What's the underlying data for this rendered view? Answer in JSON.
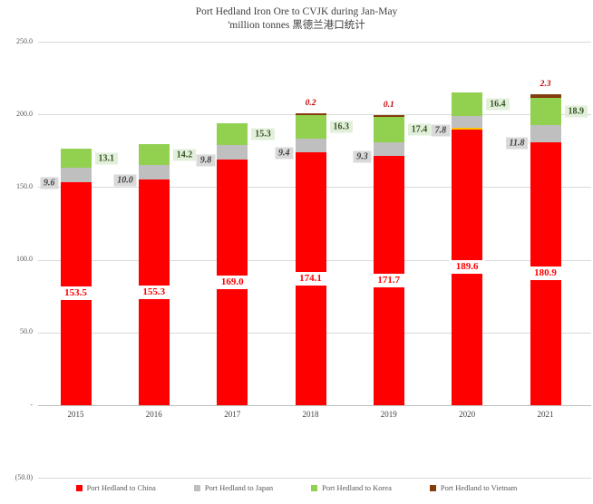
{
  "title": {
    "line1": "Port Hedland Iron Ore to CVJK during Jan-May",
    "line2": "'million tonnes 黑德兰港口统计"
  },
  "chart_data": {
    "type": "bar",
    "stacked": true,
    "title": "Port Hedland Iron Ore to CVJK during Jan-May 'million tonnes 黑德兰港口统计",
    "categories": [
      "2015",
      "2016",
      "2017",
      "2018",
      "2019",
      "2020",
      "2021"
    ],
    "series": [
      {
        "name": "Port Hedland to China",
        "color": "#FF0000",
        "label_style": "white-box-inside-bar",
        "values": [
          153.5,
          155.3,
          169.0,
          174.1,
          171.7,
          189.6,
          180.9
        ]
      },
      {
        "name": "Port Hedland to Japan",
        "color": "#BFBFBF",
        "label_style": "gray-box-left-of-bar",
        "values": [
          9.6,
          10.0,
          9.8,
          9.4,
          9.3,
          7.8,
          11.8
        ]
      },
      {
        "name": "Port Hedland to Korea",
        "color": "#92D050",
        "label_style": "green-box-right-of-bar",
        "values": [
          13.1,
          14.2,
          15.3,
          16.3,
          17.4,
          16.4,
          18.9
        ]
      },
      {
        "name": "Port Hedland to Vietnam",
        "color": "#843C0C",
        "label_style": "red-italic-above-bar",
        "values": [
          null,
          null,
          null,
          0.2,
          0.1,
          null,
          2.3
        ]
      }
    ],
    "y_ticks": [
      {
        "label": "250.0",
        "value": 250
      },
      {
        "label": "200.0",
        "value": 200
      },
      {
        "label": "150.0",
        "value": 150
      },
      {
        "label": "100.0",
        "value": 100
      },
      {
        "label": "50.0",
        "value": 50
      },
      {
        "label": "-",
        "value": 0
      },
      {
        "label": "(50.0)",
        "value": -50
      }
    ],
    "ylim": [
      -50,
      250
    ],
    "gridlines": true,
    "legend_position": "bottom",
    "extras": {
      "unlabeled_yellow_stripe": {
        "category": "2020",
        "color": "#FFC000"
      }
    }
  }
}
